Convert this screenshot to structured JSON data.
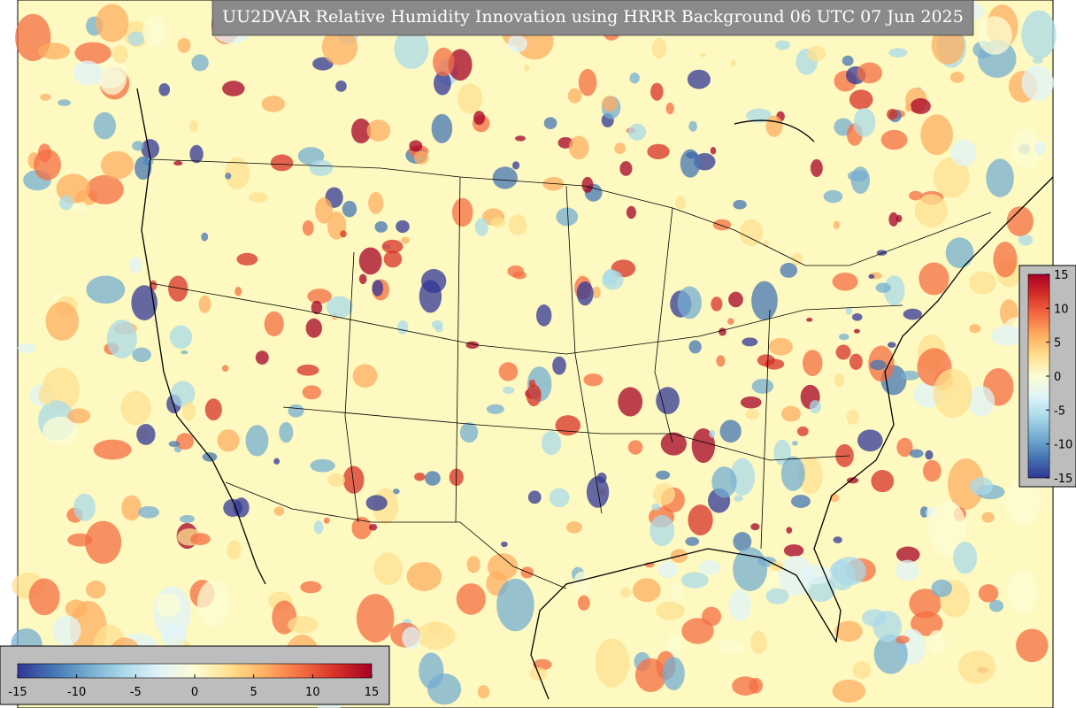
{
  "title": "UU2DVAR Relative Humidity Innovation using HRRR Background 06 UTC 07 Jun 2025",
  "colorbar": {
    "lim": [
      -15,
      15
    ],
    "ticks": [
      -15,
      -10,
      -5,
      0,
      5,
      10,
      15
    ],
    "colormap": [
      "#313695",
      "#4575b4",
      "#74add1",
      "#abd9e9",
      "#e0f3f8",
      "#fcfcd4",
      "#fee090",
      "#fdae61",
      "#f46d43",
      "#d73027",
      "#a50026"
    ]
  }
}
